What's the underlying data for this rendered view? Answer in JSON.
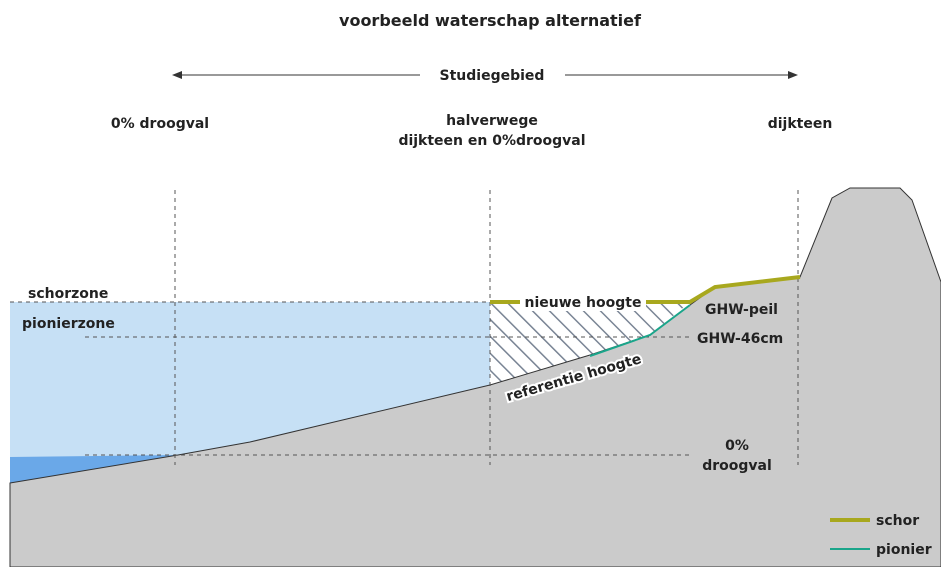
{
  "title": "voorbeeld waterschap alternatief",
  "study_area": "Studiegebied",
  "columns": [
    {
      "lines": [
        "0% droogval"
      ]
    },
    {
      "lines": [
        "halverwege",
        "dijkteen en 0%droogval"
      ]
    },
    {
      "lines": [
        "dijkteen"
      ]
    }
  ],
  "zones": [
    "schorzone",
    "pionierzone"
  ],
  "labels": {
    "new_height": "nieuwe hoogte",
    "reference_height": "referentie hoogte",
    "ghw": "GHW-peil",
    "ghw46": "GHW-46cm",
    "dry": [
      "0%",
      "droogval"
    ]
  },
  "legend": [
    {
      "name": "schor",
      "color": "#a8a81e"
    },
    {
      "name": "pionier",
      "color": "#1aa58a"
    }
  ]
}
